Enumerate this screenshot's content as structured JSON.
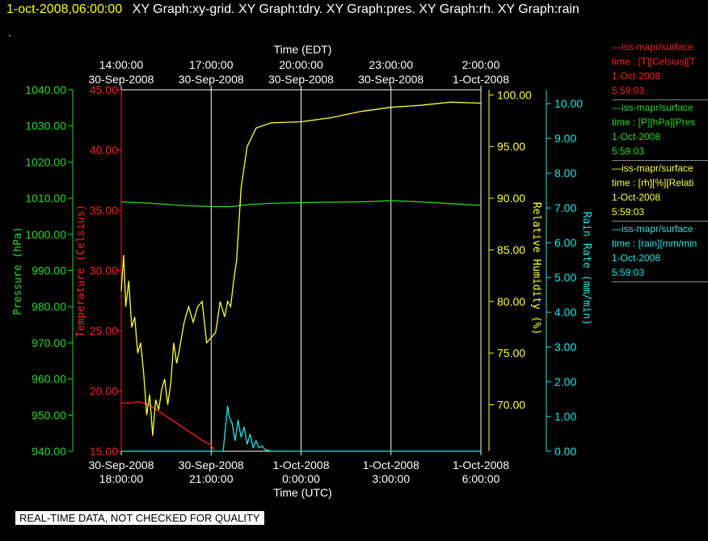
{
  "header": {
    "date_label": "1-oct-2008,06:00:00",
    "graphs_label": "XY Graph:xy-grid.  XY Graph:tdry.  XY Graph:pres.  XY Graph:rh.  XY Graph:rain",
    "dot": "."
  },
  "disclaimer": "REAL-TIME DATA, NOT CHECKED FOR QUALITY",
  "legend": [
    {
      "lines": [
        "—iss-mapr/surface",
        "time : [T][Celsius][T",
        "1-Oct-2008",
        "5:59:03"
      ],
      "color": "#ff2020"
    },
    {
      "lines": [
        "—iss-mapr/surface",
        "time : [P][hPa][Pres",
        "1-Oct-2008",
        "5:59:03"
      ],
      "color": "#22dd22"
    },
    {
      "lines": [
        "—iss-mapr/surface",
        "time : [rh][%][Relati",
        "1-Oct-2008",
        "5:59:03"
      ],
      "color": "#ffff33"
    },
    {
      "lines": [
        "—iss-mapr/surface",
        "time : [rain][mm/min",
        "1-Oct-2008",
        "5:59:03"
      ],
      "color": "#22e5e5"
    }
  ],
  "chart_data": {
    "type": "line",
    "top_axis": {
      "title": "Time (EDT)",
      "ticks": [
        {
          "time": "14:00:00",
          "date": "30-Sep-2008"
        },
        {
          "time": "17:00:00",
          "date": "30-Sep-2008"
        },
        {
          "time": "20:00:00",
          "date": "30-Sep-2008"
        },
        {
          "time": "23:00:00",
          "date": "30-Sep-2008"
        },
        {
          "time": "2:00:00",
          "date": "1-Oct-2008"
        }
      ]
    },
    "bottom_axis": {
      "title": "Time (UTC)",
      "ticks": [
        {
          "date": "30-Sep-2008",
          "time": "18:00:00"
        },
        {
          "date": "30-Sep-2008",
          "time": "21:00:00"
        },
        {
          "date": "1-Oct-2008",
          "time": "0:00:00"
        },
        {
          "date": "1-Oct-2008",
          "time": "3:00:00"
        },
        {
          "date": "1-Oct-2008",
          "time": "6:00:00"
        }
      ]
    },
    "x_range_hours": [
      18,
      30
    ],
    "grid_x_hours": [
      21,
      24,
      27
    ],
    "axes": {
      "pressure": {
        "label": "Pressure (hPa)",
        "range": [
          940,
          1040
        ],
        "ticks": [
          "940.00",
          "950.00",
          "960.00",
          "970.00",
          "980.00",
          "990.00",
          "1000.00",
          "1010.00",
          "1020.00",
          "1030.00",
          "1040.00"
        ],
        "color": "#22dd22"
      },
      "temperature": {
        "label": "Temperature (Celsius)",
        "range": [
          15,
          45
        ],
        "ticks": [
          "15.00",
          "20.00",
          "25.00",
          "30.00",
          "35.00",
          "40.00",
          "45.00"
        ],
        "color": "#ff2020"
      },
      "rh": {
        "label": "Relative Humidity (%)",
        "range": [
          65.5,
          100.5
        ],
        "ticks": [
          "70.00",
          "75.00",
          "80.00",
          "85.00",
          "90.00",
          "95.00",
          "100.00"
        ],
        "color": "#ffff33"
      },
      "rain": {
        "label": "Rain Rate (mm/min)",
        "range": [
          0,
          10.4
        ],
        "ticks": [
          "0.00",
          "1.00",
          "2.00",
          "3.00",
          "4.00",
          "5.00",
          "6.00",
          "7.00",
          "8.00",
          "9.00",
          "10.00"
        ],
        "color": "#22e5e5"
      }
    },
    "series": [
      {
        "axis": "temperature",
        "x": [
          18.0,
          18.3,
          18.6,
          18.9,
          19.2,
          19.5,
          19.8,
          20.1,
          20.4,
          20.7,
          21.0,
          21.1
        ],
        "y": [
          19.0,
          19.0,
          19.1,
          18.9,
          18.4,
          17.9,
          17.4,
          16.9,
          16.4,
          15.9,
          15.5,
          15.1
        ]
      },
      {
        "axis": "pressure",
        "x": [
          18.0,
          19.0,
          20.0,
          21.0,
          21.7,
          22.2,
          23.0,
          24.0,
          25.0,
          26.0,
          27.0,
          28.0,
          29.0,
          30.0
        ],
        "y": [
          1009.0,
          1008.6,
          1008.0,
          1007.7,
          1007.7,
          1008.2,
          1008.6,
          1008.8,
          1008.9,
          1009.0,
          1009.3,
          1009.0,
          1008.5,
          1008.0
        ]
      },
      {
        "axis": "rh",
        "x": [
          18.0,
          18.08,
          18.15,
          18.25,
          18.35,
          18.45,
          18.55,
          18.65,
          18.75,
          18.85,
          18.95,
          19.05,
          19.15,
          19.25,
          19.35,
          19.45,
          19.55,
          19.65,
          19.75,
          19.85,
          19.95,
          20.1,
          20.25,
          20.4,
          20.55,
          20.7,
          20.85,
          21.0,
          21.15,
          21.3,
          21.45,
          21.55,
          21.65,
          21.75,
          21.85,
          22.0,
          22.2,
          22.5,
          23.0,
          24.0,
          25.0,
          26.0,
          27.0,
          28.0,
          29.0,
          30.0
        ],
        "y": [
          81.0,
          84.5,
          79.5,
          82.0,
          77.5,
          78.5,
          75.0,
          76.0,
          73.0,
          69.0,
          71.0,
          67.0,
          70.5,
          69.5,
          71.5,
          72.5,
          70.0,
          72.0,
          76.0,
          74.0,
          75.5,
          78.0,
          79.5,
          78.0,
          79.5,
          80.0,
          76.0,
          76.5,
          77.0,
          80.0,
          78.5,
          80.0,
          79.5,
          82.0,
          84.0,
          91.0,
          95.0,
          96.8,
          97.3,
          97.4,
          97.8,
          98.4,
          98.8,
          99.0,
          99.3,
          99.2
        ]
      },
      {
        "axis": "rain",
        "x": [
          18.0,
          21.4,
          21.55,
          21.6,
          21.7,
          21.8,
          21.9,
          22.0,
          22.1,
          22.2,
          22.3,
          22.4,
          22.5,
          22.6,
          22.7,
          22.8,
          23.0,
          30.0
        ],
        "y": [
          0.0,
          0.0,
          1.3,
          1.0,
          0.8,
          0.3,
          0.9,
          0.4,
          0.7,
          0.2,
          0.5,
          0.1,
          0.3,
          0.1,
          0.15,
          0.05,
          0.0,
          0.0
        ]
      }
    ]
  }
}
